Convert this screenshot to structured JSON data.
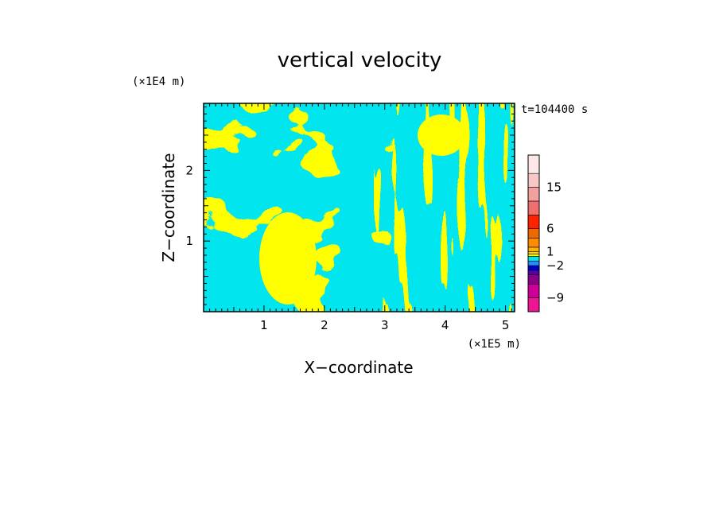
{
  "chart_data": {
    "type": "heatmap",
    "title": "vertical velocity",
    "xlabel": "X−coordinate",
    "ylabel": "Z−coordinate",
    "x_scale_label": "(×1E5 m)",
    "y_scale_label": "(×1E4 m)",
    "time_label": "t=104400 s",
    "xlim": [
      0,
      5.15
    ],
    "ylim": [
      0,
      2.95
    ],
    "x_ticks": [
      1,
      2,
      3,
      4,
      5
    ],
    "y_ticks": [
      1,
      2
    ],
    "x_tick_labels": [
      "1",
      "2",
      "3",
      "4",
      "5"
    ],
    "y_tick_labels": [
      "1",
      "2"
    ],
    "field_colors": {
      "positive": "#FFFF00",
      "negative": "#00E5EE"
    },
    "colorbar": {
      "min": -12,
      "max": 22,
      "tick_values": [
        15,
        6,
        1,
        -2,
        -9
      ],
      "tick_labels": [
        "15",
        "6",
        "1",
        "−2",
        "−9"
      ],
      "levels": [
        {
          "lo": -12,
          "hi": -9,
          "color": "#EE1493"
        },
        {
          "lo": -9,
          "hi": -6,
          "color": "#CC0099"
        },
        {
          "lo": -6,
          "hi": -4,
          "color": "#8B008B"
        },
        {
          "lo": -4,
          "hi": -3,
          "color": "#5500AA"
        },
        {
          "lo": -3,
          "hi": -2,
          "color": "#0000CD"
        },
        {
          "lo": -2,
          "hi": -1,
          "color": "#1E90FF"
        },
        {
          "lo": -1,
          "hi": 0,
          "color": "#00E5EE"
        },
        {
          "lo": 0,
          "hi": 0.5,
          "color": "#FFFF00"
        },
        {
          "lo": 0.5,
          "hi": 1,
          "color": "#FFD700"
        },
        {
          "lo": 1,
          "hi": 2,
          "color": "#FFB000"
        },
        {
          "lo": 2,
          "hi": 4,
          "color": "#FF8C00"
        },
        {
          "lo": 4,
          "hi": 6,
          "color": "#EE6A00"
        },
        {
          "lo": 6,
          "hi": 9,
          "color": "#FF2200"
        },
        {
          "lo": 9,
          "hi": 12,
          "color": "#F07070"
        },
        {
          "lo": 12,
          "hi": 15,
          "color": "#F5A0A0"
        },
        {
          "lo": 15,
          "hi": 18,
          "color": "#F8C8C8"
        },
        {
          "lo": 18,
          "hi": 22,
          "color": "#FCE8E8"
        }
      ]
    }
  }
}
